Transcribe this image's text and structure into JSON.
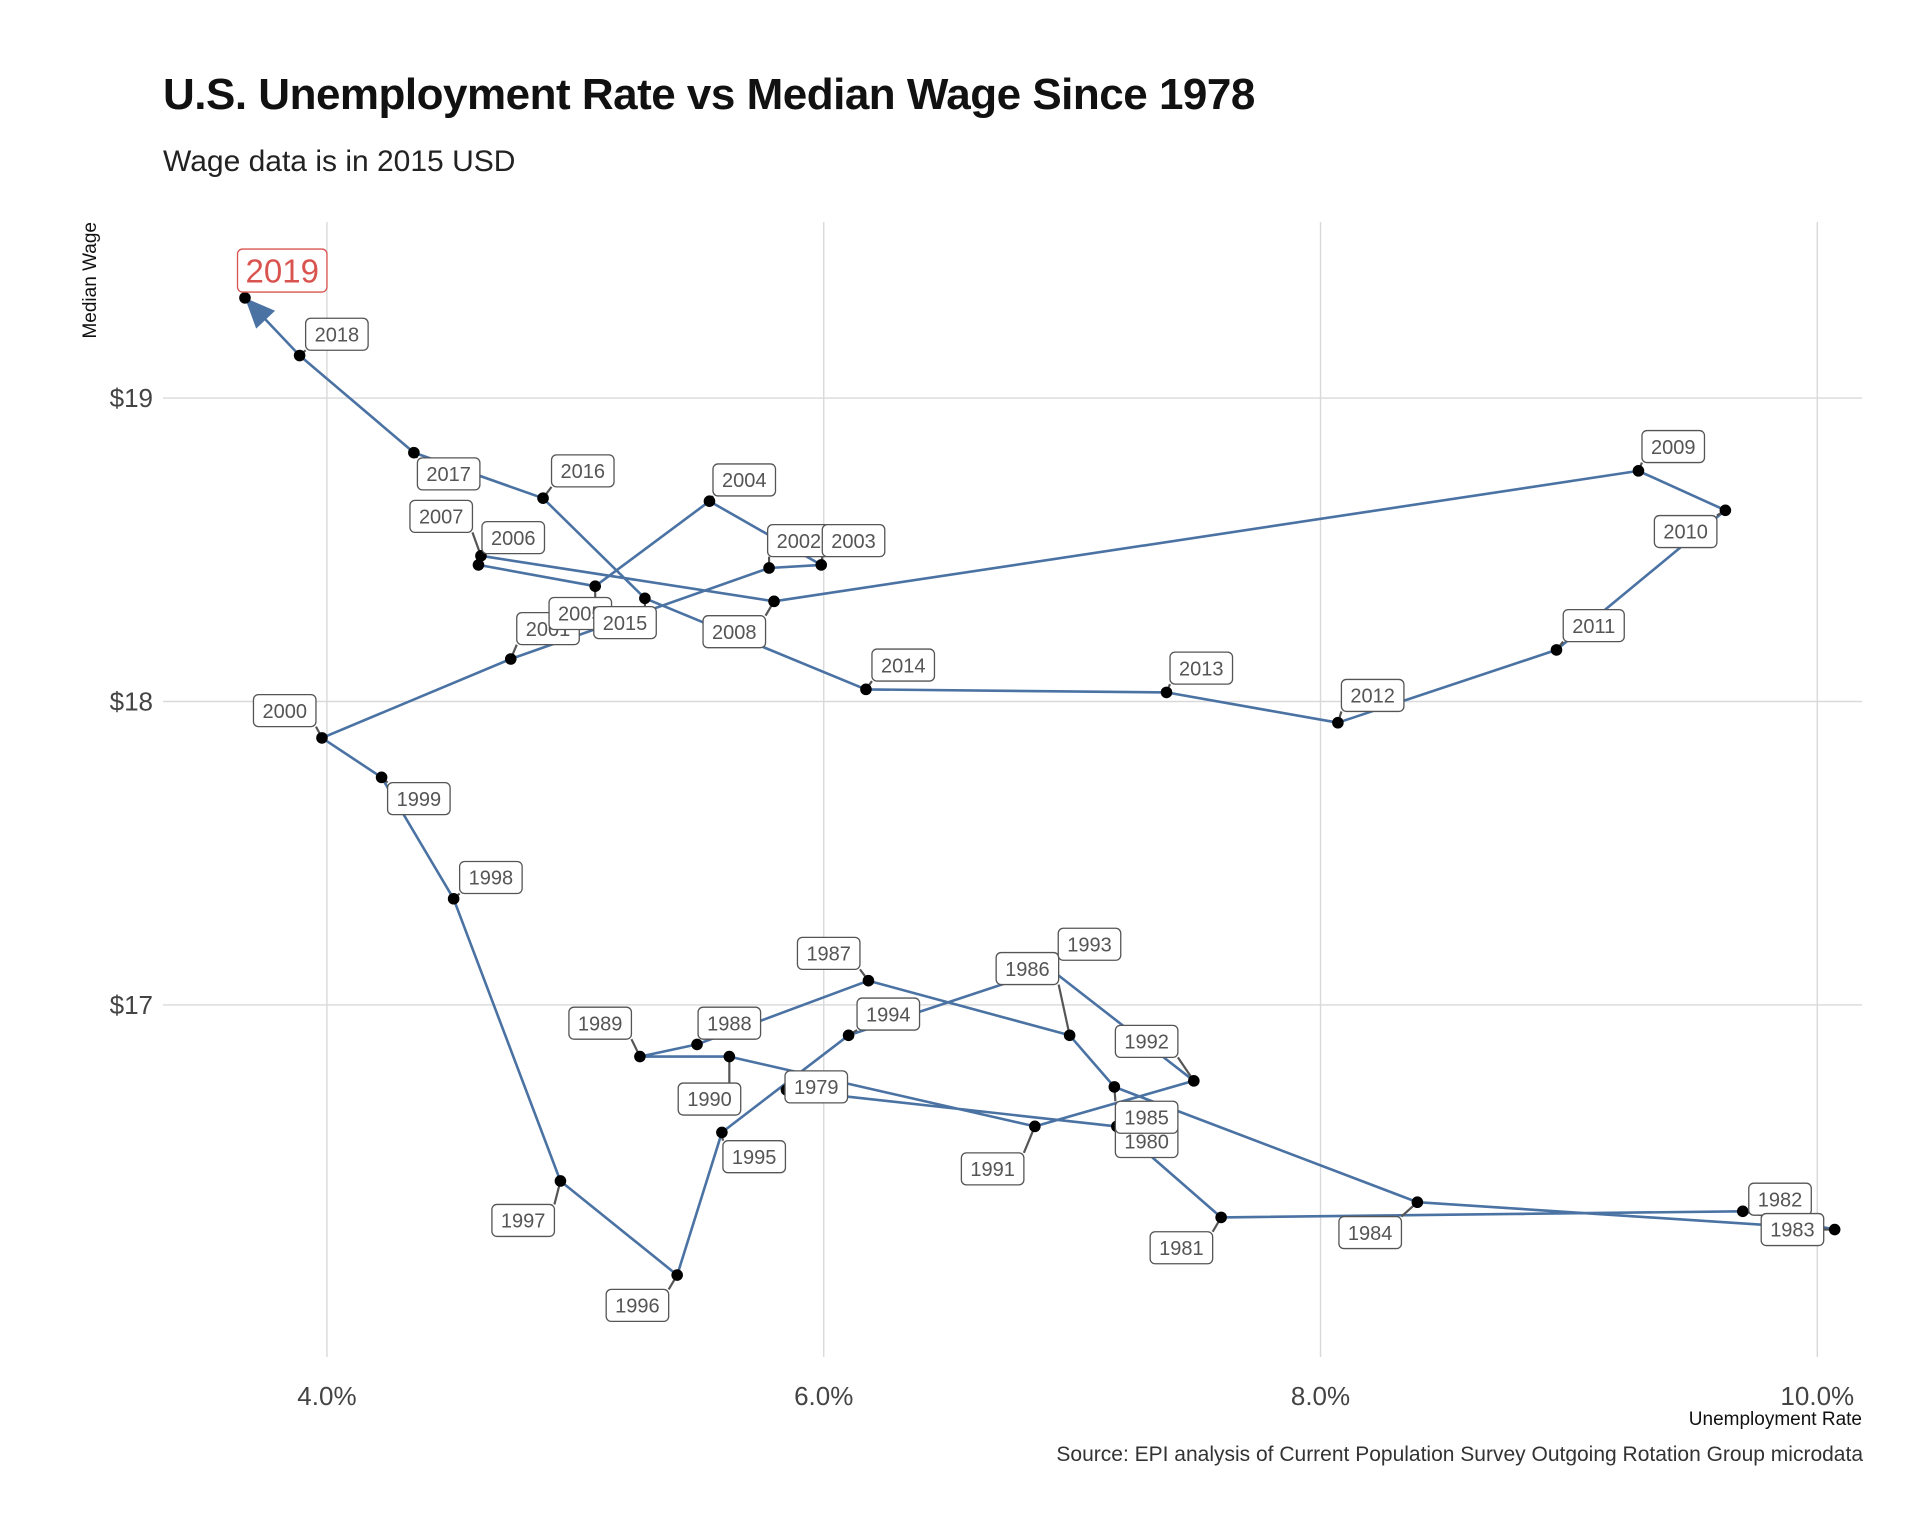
{
  "chart_data": {
    "type": "line",
    "title": "U.S. Unemployment Rate vs Median Wage Since 1978",
    "subtitle": "Wage data is in 2015 USD",
    "xlabel": "Unemployment Rate",
    "ylabel": "Median Wage",
    "source": "Source: EPI analysis of Current Population Survey Outgoing Rotation Group microdata",
    "x_ticks": [
      "4.0%",
      "6.0%",
      "8.0%",
      "10.0%"
    ],
    "x_tick_values": [
      4,
      6,
      8,
      10
    ],
    "y_ticks": [
      "$17",
      "$18",
      "$19"
    ],
    "y_tick_values": [
      17,
      18,
      19
    ],
    "xlim": [
      3.34,
      10.18
    ],
    "ylim": [
      15.84,
      19.58
    ],
    "grid": true,
    "line_color": "#4a72a3",
    "point_color": "#000000",
    "highlight_color": "#d9534f",
    "highlight_label": "2019",
    "points": [
      {
        "year": "1979",
        "x": 5.85,
        "y": 16.72,
        "lx": 5.97,
        "ly": 16.73
      },
      {
        "year": "1980",
        "x": 7.18,
        "y": 16.6,
        "lx": 7.3,
        "ly": 16.55
      },
      {
        "year": "1981",
        "x": 7.6,
        "y": 16.3,
        "lx": 7.44,
        "ly": 16.2
      },
      {
        "year": "1982",
        "x": 9.7,
        "y": 16.32,
        "lx": 9.85,
        "ly": 16.36
      },
      {
        "year": "1983",
        "x": 10.07,
        "y": 16.26,
        "lx": 9.9,
        "ly": 16.26
      },
      {
        "year": "1984",
        "x": 8.39,
        "y": 16.35,
        "lx": 8.2,
        "ly": 16.25
      },
      {
        "year": "1985",
        "x": 7.17,
        "y": 16.73,
        "lx": 7.3,
        "ly": 16.63
      },
      {
        "year": "1986",
        "x": 6.99,
        "y": 16.9,
        "lx": 6.82,
        "ly": 17.12
      },
      {
        "year": "1987",
        "x": 6.18,
        "y": 17.08,
        "lx": 6.02,
        "ly": 17.17
      },
      {
        "year": "1988",
        "x": 5.49,
        "y": 16.87,
        "lx": 5.62,
        "ly": 16.94
      },
      {
        "year": "1989",
        "x": 5.26,
        "y": 16.83,
        "lx": 5.1,
        "ly": 16.94
      },
      {
        "year": "1990",
        "x": 5.62,
        "y": 16.83,
        "lx": 5.54,
        "ly": 16.69
      },
      {
        "year": "1991",
        "x": 6.85,
        "y": 16.6,
        "lx": 6.68,
        "ly": 16.46
      },
      {
        "year": "1992",
        "x": 7.49,
        "y": 16.75,
        "lx": 7.3,
        "ly": 16.88
      },
      {
        "year": "1993",
        "x": 6.91,
        "y": 17.12,
        "lx": 7.07,
        "ly": 17.2
      },
      {
        "year": "1994",
        "x": 6.1,
        "y": 16.9,
        "lx": 6.26,
        "ly": 16.97
      },
      {
        "year": "1995",
        "x": 5.59,
        "y": 16.58,
        "lx": 5.72,
        "ly": 16.5
      },
      {
        "year": "1996",
        "x": 5.41,
        "y": 16.11,
        "lx": 5.25,
        "ly": 16.01
      },
      {
        "year": "1997",
        "x": 4.94,
        "y": 16.42,
        "lx": 4.79,
        "ly": 16.29
      },
      {
        "year": "1998",
        "x": 4.51,
        "y": 17.35,
        "lx": 4.66,
        "ly": 17.42
      },
      {
        "year": "1999",
        "x": 4.22,
        "y": 17.75,
        "lx": 4.37,
        "ly": 17.68
      },
      {
        "year": "2000",
        "x": 3.98,
        "y": 17.88,
        "lx": 3.83,
        "ly": 17.97
      },
      {
        "year": "2001",
        "x": 4.74,
        "y": 18.14,
        "lx": 4.89,
        "ly": 18.24
      },
      {
        "year": "2002",
        "x": 5.78,
        "y": 18.44,
        "lx": 5.9,
        "ly": 18.53
      },
      {
        "year": "2003",
        "x": 5.99,
        "y": 18.45,
        "lx": 6.12,
        "ly": 18.53
      },
      {
        "year": "2004",
        "x": 5.54,
        "y": 18.66,
        "lx": 5.68,
        "ly": 18.73
      },
      {
        "year": "2005",
        "x": 5.08,
        "y": 18.38,
        "lx": 5.02,
        "ly": 18.29
      },
      {
        "year": "2006",
        "x": 4.61,
        "y": 18.45,
        "lx": 4.75,
        "ly": 18.54
      },
      {
        "year": "2007",
        "x": 4.62,
        "y": 18.48,
        "lx": 4.46,
        "ly": 18.61
      },
      {
        "year": "2008",
        "x": 5.8,
        "y": 18.33,
        "lx": 5.64,
        "ly": 18.23
      },
      {
        "year": "2009",
        "x": 9.28,
        "y": 18.76,
        "lx": 9.42,
        "ly": 18.84
      },
      {
        "year": "2010",
        "x": 9.63,
        "y": 18.63,
        "lx": 9.47,
        "ly": 18.56
      },
      {
        "year": "2011",
        "x": 8.95,
        "y": 18.17,
        "lx": 9.1,
        "ly": 18.25
      },
      {
        "year": "2012",
        "x": 8.07,
        "y": 17.93,
        "lx": 8.21,
        "ly": 18.02
      },
      {
        "year": "2013",
        "x": 7.38,
        "y": 18.03,
        "lx": 7.52,
        "ly": 18.11
      },
      {
        "year": "2014",
        "x": 6.17,
        "y": 18.04,
        "lx": 6.32,
        "ly": 18.12
      },
      {
        "year": "2015",
        "x": 5.28,
        "y": 18.34,
        "lx": 5.2,
        "ly": 18.26
      },
      {
        "year": "2016",
        "x": 4.87,
        "y": 18.67,
        "lx": 5.03,
        "ly": 18.76
      },
      {
        "year": "2017",
        "x": 4.35,
        "y": 18.82,
        "lx": 4.49,
        "ly": 18.75
      },
      {
        "year": "2018",
        "x": 3.89,
        "y": 19.14,
        "lx": 4.04,
        "ly": 19.21
      }
    ],
    "highlight_point": {
      "year": "2019",
      "x": 3.67,
      "y": 19.33,
      "lx": 3.82,
      "ly": 19.42
    }
  }
}
